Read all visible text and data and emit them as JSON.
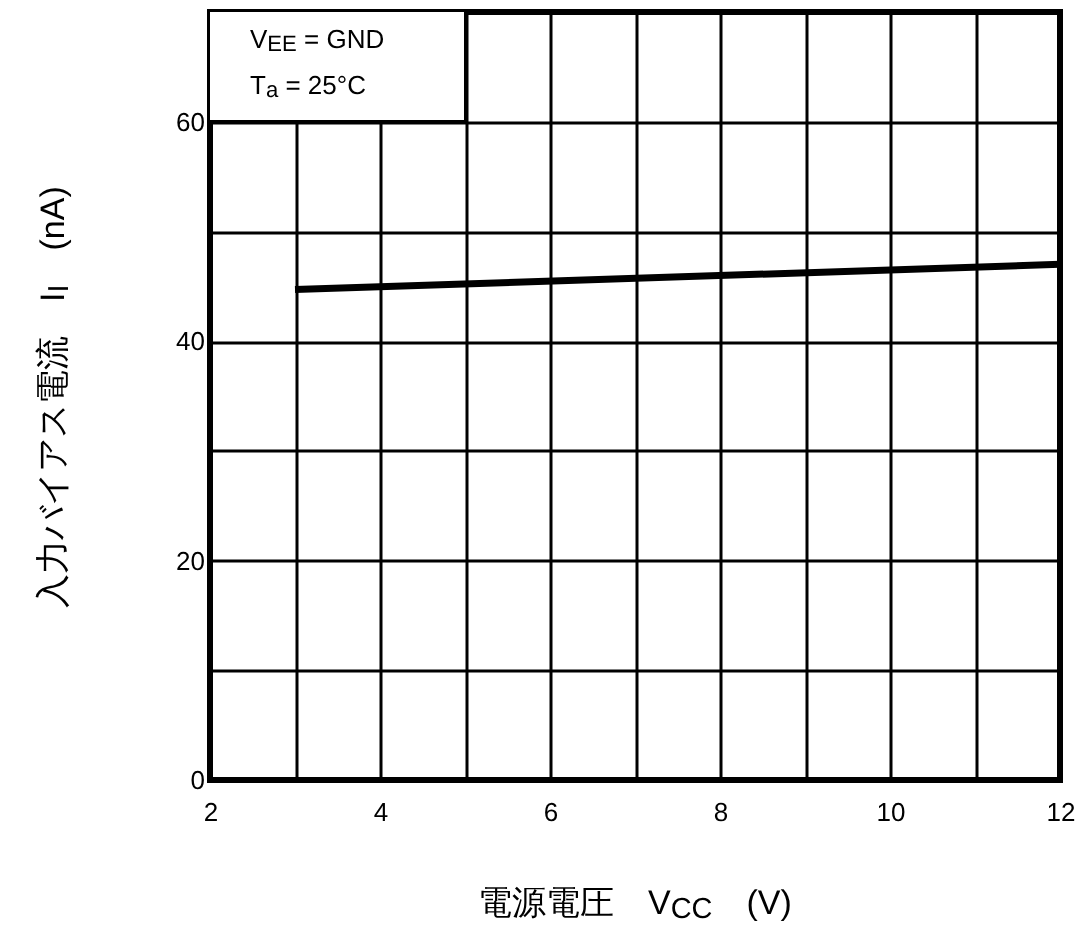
{
  "chart_data": {
    "type": "line",
    "xlabel": "電源電圧　V$_{CC}$　(V)",
    "ylabel": "入力バイアス電流　I$_{I}$　(nA)",
    "annotations": [
      "V$_{EE}$ = GND",
      "T$_{a}$ = 25°C"
    ],
    "series": [
      {
        "color": "#000000",
        "x": [
          3,
          12
        ],
        "values": [
          44.7,
          47
        ]
      }
    ],
    "xlim": [
      2,
      12
    ],
    "xticks": [
      2,
      {
        "value": 3,
        "label": null
      },
      4,
      {
        "value": 5,
        "label": null
      },
      6,
      {
        "value": 7,
        "label": null
      },
      8,
      {
        "value": 9,
        "label": null
      },
      10,
      {
        "value": 11,
        "label": null
      },
      12
    ],
    "ylim": [
      0,
      70
    ],
    "yticks": [
      0,
      {
        "value": 10,
        "label": null
      },
      20,
      {
        "value": 30,
        "label": null
      },
      40,
      {
        "value": 50,
        "label": null
      },
      60,
      {
        "value": 70,
        "label": null
      }
    ],
    "grid": true,
    "marker": "none",
    "line_style": "solid"
  }
}
